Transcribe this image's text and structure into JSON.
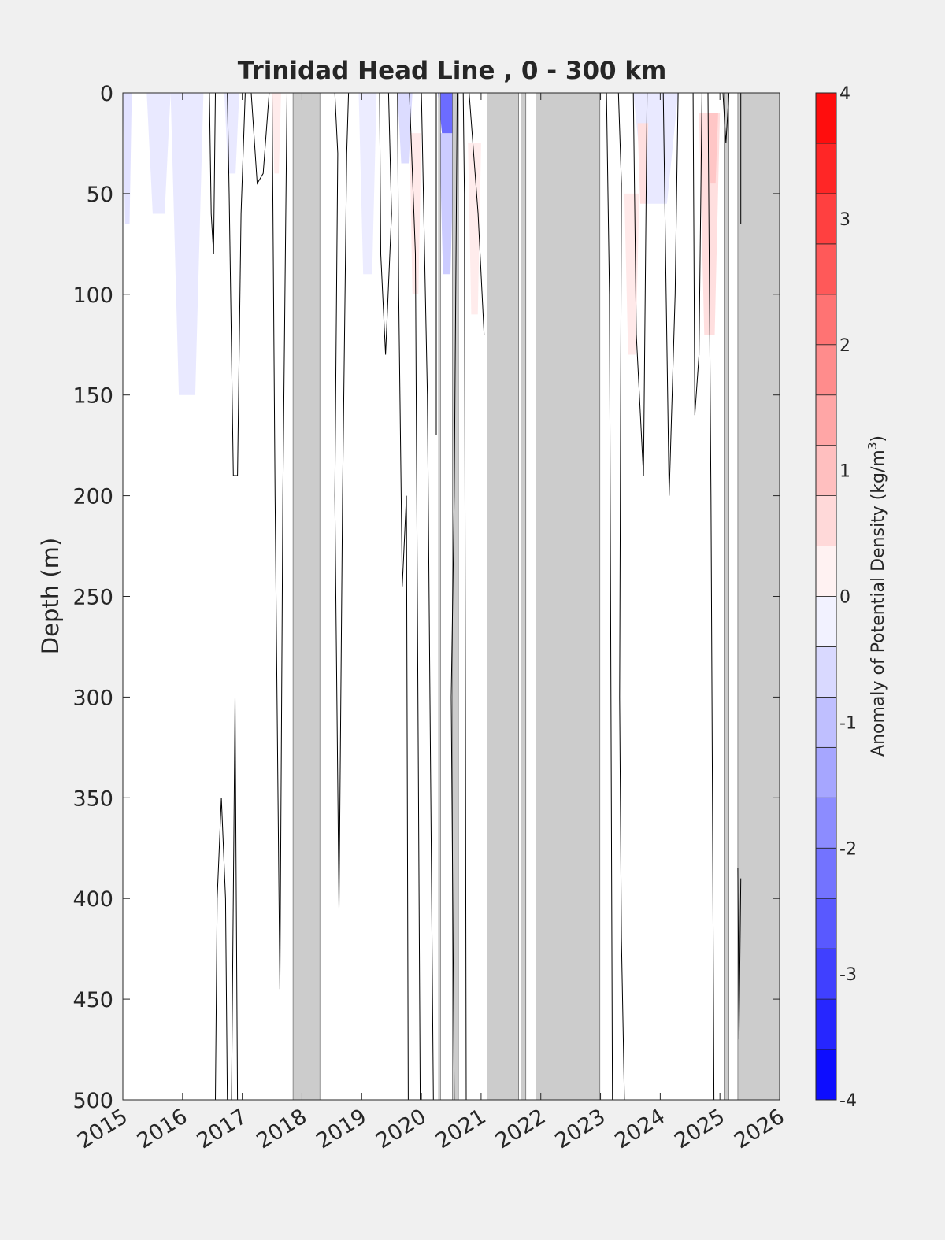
{
  "chart_data": {
    "type": "heatmap",
    "title": "Trinidad Head Line , 0 - 300 km",
    "ylabel": "Depth (m)",
    "xlabel": "",
    "xlim": [
      2015,
      2026
    ],
    "ylim": [
      0,
      500
    ],
    "y_reversed": true,
    "x_tick_labels": [
      "2015",
      "2016",
      "2017",
      "2018",
      "2019",
      "2020",
      "2021",
      "2022",
      "2023",
      "2024",
      "2025",
      "2026"
    ],
    "y_tick_labels": [
      "0",
      "50",
      "100",
      "150",
      "200",
      "250",
      "300",
      "350",
      "400",
      "450",
      "500"
    ],
    "colorbar": {
      "label": "Anomaly of Potential Density (kg/m",
      "label_superscript": "3",
      "label_suffix": ")",
      "range": [
        -4,
        4
      ],
      "levels": 20,
      "tick_labels": [
        "-4",
        "-3",
        "-2",
        "-1",
        "0",
        "1",
        "2",
        "3",
        "4"
      ],
      "colors": {
        "negative": "#0000ff",
        "zero": "#ffffff",
        "positive": "#ff0000"
      }
    },
    "no_data_color": "#cccccc",
    "no_data_periods": [
      [
        2017.85,
        2018.3
      ],
      [
        2020.29,
        2020.32
      ],
      [
        2020.52,
        2020.62
      ],
      [
        2021.1,
        2021.63
      ],
      [
        2021.67,
        2021.75
      ],
      [
        2021.92,
        2022.99
      ],
      [
        2025.07,
        2025.15
      ],
      [
        2025.3,
        2026.0
      ]
    ],
    "anomaly_patches": [
      {
        "x0": 2015.0,
        "x1": 2015.15,
        "d0": 0,
        "d1": 65,
        "value": -0.45
      },
      {
        "x0": 2015.4,
        "x1": 2015.8,
        "d0": 0,
        "d1": 60,
        "value": -0.35
      },
      {
        "x0": 2015.8,
        "x1": 2016.35,
        "d0": 0,
        "d1": 150,
        "value": -0.35
      },
      {
        "x0": 2016.7,
        "x1": 2016.95,
        "d0": 0,
        "d1": 40,
        "value": -0.35
      },
      {
        "x0": 2017.5,
        "x1": 2017.65,
        "d0": 0,
        "d1": 40,
        "value": 0.3
      },
      {
        "x0": 2018.95,
        "x1": 2019.25,
        "d0": 0,
        "d1": 90,
        "value": -0.3
      },
      {
        "x0": 2019.6,
        "x1": 2019.85,
        "d0": 0,
        "d1": 35,
        "value": -0.55
      },
      {
        "x0": 2019.8,
        "x1": 2020.0,
        "d0": 20,
        "d1": 100,
        "value": 0.35
      },
      {
        "x0": 2020.28,
        "x1": 2020.6,
        "d0": 0,
        "d1": 25,
        "value": -2.3
      },
      {
        "x0": 2020.3,
        "x1": 2020.55,
        "d0": 20,
        "d1": 90,
        "value": -0.8
      },
      {
        "x0": 2020.78,
        "x1": 2021.0,
        "d0": 25,
        "d1": 110,
        "value": 0.3
      },
      {
        "x0": 2021.3,
        "x1": 2021.63,
        "d0": 0,
        "d1": 55,
        "value": -0.4
      },
      {
        "x0": 2023.55,
        "x1": 2024.3,
        "d0": 0,
        "d1": 55,
        "value": -0.35
      },
      {
        "x0": 2023.4,
        "x1": 2023.65,
        "d0": 50,
        "d1": 130,
        "value": 0.35
      },
      {
        "x0": 2023.62,
        "x1": 2023.8,
        "d0": 15,
        "d1": 55,
        "value": 0.5
      },
      {
        "x0": 2024.65,
        "x1": 2025.0,
        "d0": 10,
        "d1": 120,
        "value": 0.5
      },
      {
        "x0": 2024.8,
        "x1": 2024.97,
        "d0": 10,
        "d1": 45,
        "value": 0.9
      }
    ],
    "zero_contours": [
      [
        [
          2016.45,
          0
        ],
        [
          2016.48,
          60
        ],
        [
          2016.52,
          80
        ],
        [
          2016.55,
          0
        ]
      ],
      [
        [
          2016.75,
          0
        ],
        [
          2016.78,
          50
        ],
        [
          2016.85,
          190
        ],
        [
          2016.92,
          190
        ],
        [
          2016.98,
          60
        ],
        [
          2017.05,
          0
        ]
      ],
      [
        [
          2017.15,
          0
        ],
        [
          2017.25,
          45
        ],
        [
          2017.35,
          40
        ],
        [
          2017.45,
          0
        ]
      ],
      [
        [
          2017.5,
          0
        ],
        [
          2017.55,
          200
        ],
        [
          2017.63,
          445
        ],
        [
          2017.68,
          200
        ],
        [
          2017.75,
          0
        ]
      ],
      [
        [
          2016.55,
          500
        ],
        [
          2016.58,
          400
        ],
        [
          2016.65,
          350
        ],
        [
          2016.72,
          400
        ],
        [
          2016.75,
          500
        ]
      ],
      [
        [
          2016.82,
          500
        ],
        [
          2016.88,
          300
        ],
        [
          2016.92,
          500
        ]
      ],
      [
        [
          2018.55,
          0
        ],
        [
          2018.6,
          30
        ],
        [
          2018.55,
          200
        ],
        [
          2018.62,
          405
        ],
        [
          2018.68,
          200
        ],
        [
          2018.75,
          30
        ],
        [
          2018.78,
          0
        ]
      ],
      [
        [
          2019.3,
          0
        ],
        [
          2019.32,
          80
        ],
        [
          2019.4,
          130
        ],
        [
          2019.5,
          60
        ],
        [
          2019.45,
          0
        ]
      ],
      [
        [
          2019.6,
          0
        ],
        [
          2019.62,
          100
        ],
        [
          2019.68,
          245
        ],
        [
          2019.75,
          200
        ],
        [
          2019.78,
          500
        ]
      ],
      [
        [
          2019.8,
          0
        ],
        [
          2019.9,
          80
        ],
        [
          2019.98,
          500
        ]
      ],
      [
        [
          2020.0,
          0
        ],
        [
          2020.1,
          150
        ],
        [
          2020.2,
          500
        ]
      ],
      [
        [
          2020.25,
          0
        ],
        [
          2020.25,
          170
        ]
      ],
      [
        [
          2020.6,
          0
        ],
        [
          2020.55,
          200
        ],
        [
          2020.5,
          300
        ],
        [
          2020.55,
          500
        ]
      ],
      [
        [
          2020.7,
          0
        ],
        [
          2020.72,
          50
        ],
        [
          2020.75,
          500
        ]
      ],
      [
        [
          2020.8,
          0
        ],
        [
          2020.95,
          60
        ],
        [
          2021.05,
          120
        ]
      ],
      [
        [
          2023.1,
          0
        ],
        [
          2023.15,
          100
        ],
        [
          2023.2,
          500
        ]
      ],
      [
        [
          2023.3,
          0
        ],
        [
          2023.35,
          45
        ],
        [
          2023.32,
          300
        ],
        [
          2023.35,
          420
        ],
        [
          2023.4,
          500
        ]
      ],
      [
        [
          2023.55,
          0
        ],
        [
          2023.6,
          120
        ],
        [
          2023.72,
          190
        ],
        [
          2023.78,
          0
        ]
      ],
      [
        [
          2024.05,
          0
        ],
        [
          2024.1,
          100
        ],
        [
          2024.15,
          200
        ],
        [
          2024.25,
          100
        ],
        [
          2024.3,
          0
        ]
      ],
      [
        [
          2024.55,
          0
        ],
        [
          2024.58,
          160
        ],
        [
          2024.65,
          130
        ],
        [
          2024.7,
          0
        ]
      ],
      [
        [
          2024.8,
          0
        ],
        [
          2024.85,
          200
        ],
        [
          2024.9,
          500
        ]
      ],
      [
        [
          2025.05,
          0
        ],
        [
          2025.1,
          25
        ],
        [
          2025.15,
          0
        ]
      ],
      [
        [
          2025.3,
          385
        ],
        [
          2025.32,
          470
        ],
        [
          2025.35,
          390
        ]
      ],
      [
        [
          2025.35,
          65
        ],
        [
          2025.35,
          0
        ]
      ]
    ]
  }
}
